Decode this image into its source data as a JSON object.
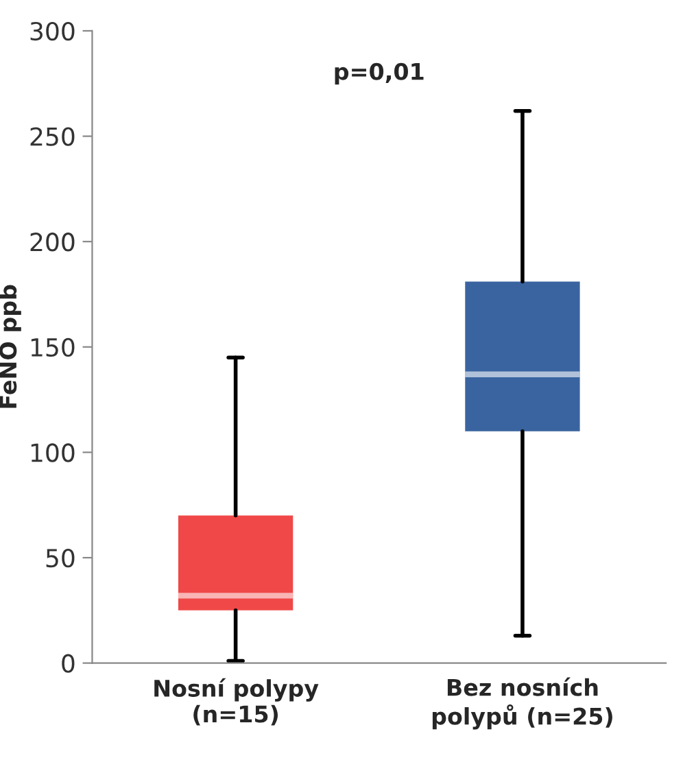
{
  "chart_data": {
    "type": "box",
    "ylabel": "FeNO ppb",
    "categories": [
      "Nosní polypy\n(n=15)",
      "Bez nosních\npolypů (n=25)"
    ],
    "boxes": [
      {
        "low": 1,
        "q1": 25,
        "median": 32,
        "q3": 70,
        "high": 145
      },
      {
        "low": 13,
        "q1": 110,
        "median": 137,
        "q3": 181,
        "high": 262
      }
    ],
    "colors": [
      "#f04848",
      "#3a64a0"
    ],
    "annotations": [
      "p=0,01"
    ],
    "ylim": [
      0,
      300
    ],
    "yticks": [
      0,
      50,
      100,
      150,
      200,
      250,
      300
    ],
    "grid": false
  }
}
